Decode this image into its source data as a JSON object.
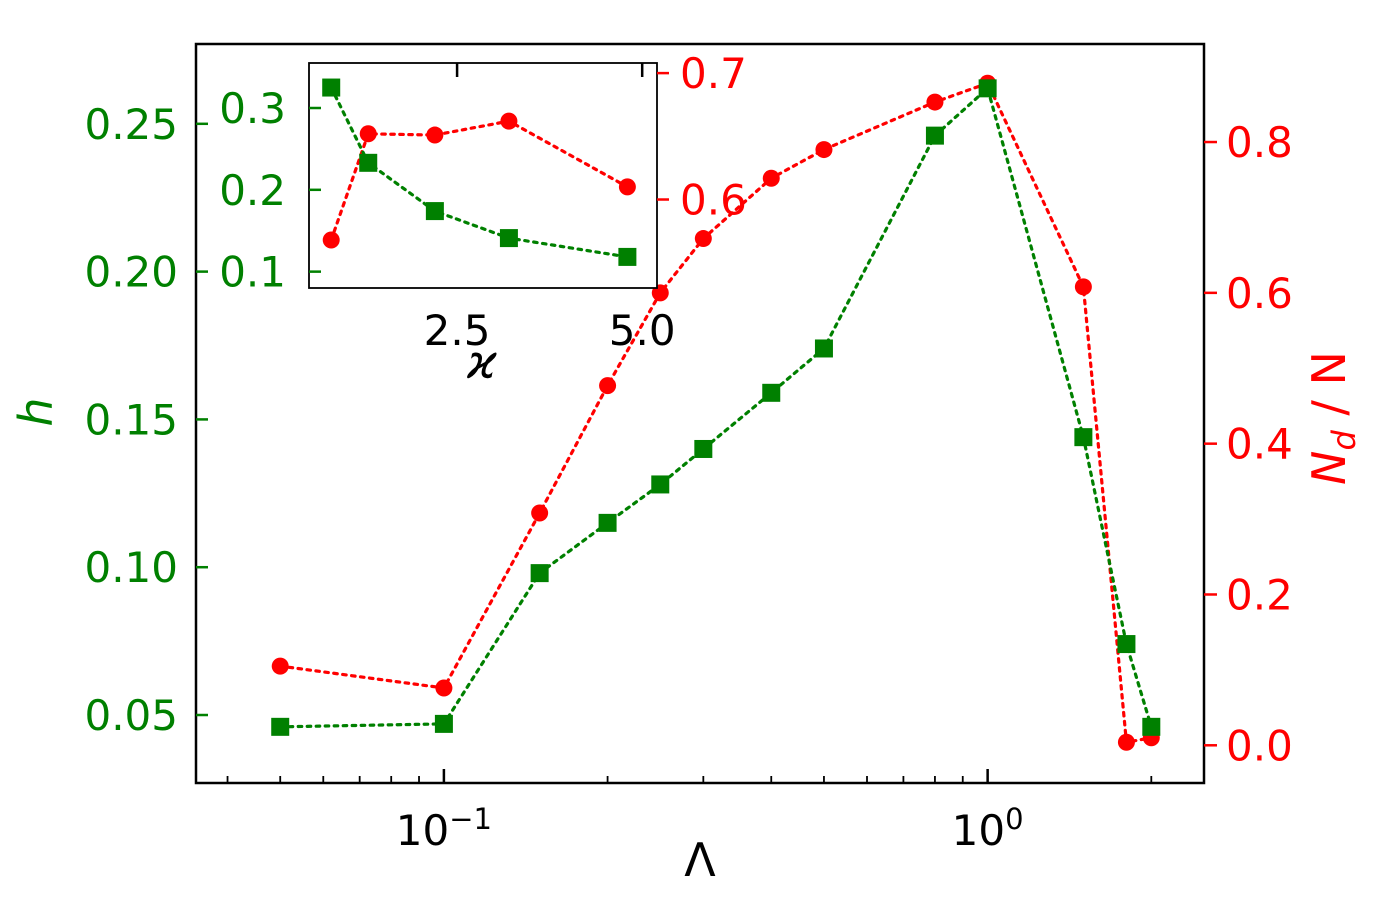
{
  "chart_data": [
    {
      "type": "scatter",
      "title": "",
      "xlabel": "Λ",
      "x_scale": "log",
      "xlim": [
        0.035,
        2.5
      ],
      "x_ticks": [
        {
          "value": 0.1,
          "base": "10",
          "exp": "−1"
        },
        {
          "value": 1,
          "base": "10",
          "exp": "0"
        }
      ],
      "y_left": {
        "label": "h",
        "color": "#008000",
        "lim": [
          0.027,
          0.277
        ],
        "ticks": [
          0.05,
          0.1,
          0.15,
          0.2,
          0.25
        ],
        "tick_labels": [
          "0.05",
          "0.10",
          "0.15",
          "0.20",
          "0.25"
        ]
      },
      "y_right": {
        "label_main": "N",
        "label_sub": "d",
        "label_rest": " / N",
        "color": "#ff0000",
        "lim": [
          -0.05,
          0.93
        ],
        "ticks": [
          0.0,
          0.2,
          0.4,
          0.6,
          0.8
        ],
        "tick_labels": [
          "0.0",
          "0.2",
          "0.4",
          "0.6",
          "0.8"
        ]
      },
      "series": [
        {
          "axis": "left",
          "marker": "square",
          "line": "dotted",
          "color": "#008000",
          "x": [
            0.05,
            0.1,
            0.15,
            0.2,
            0.25,
            0.3,
            0.4,
            0.5,
            0.8,
            1.0,
            1.5,
            1.8,
            2.0
          ],
          "y": [
            0.046,
            0.047,
            0.098,
            0.115,
            0.128,
            0.14,
            0.159,
            0.174,
            0.246,
            0.262,
            0.144,
            0.074,
            0.046
          ]
        },
        {
          "axis": "right",
          "marker": "circle",
          "line": "dotted",
          "color": "#ff0000",
          "x": [
            0.05,
            0.1,
            0.15,
            0.2,
            0.25,
            0.3,
            0.4,
            0.5,
            0.8,
            1.0,
            1.5,
            1.8,
            2.0
          ],
          "y": [
            0.105,
            0.076,
            0.308,
            0.477,
            0.6,
            0.672,
            0.752,
            0.79,
            0.853,
            0.878,
            0.608,
            0.004,
            0.01
          ]
        }
      ]
    },
    {
      "type": "scatter",
      "title": "",
      "xlabel": "ϰ",
      "xlim": [
        0.5,
        5.2
      ],
      "x_ticks": [
        2.5,
        5.0
      ],
      "x_tick_labels": [
        "2.5",
        "5.0"
      ],
      "y_left": {
        "color": "#008000",
        "lim": [
          0.08,
          0.355
        ],
        "ticks": [
          0.1,
          0.2,
          0.3
        ],
        "tick_labels": [
          "0.1",
          "0.2",
          "0.3"
        ]
      },
      "y_right": {
        "color": "#ff0000",
        "lim": [
          0.53,
          0.708
        ],
        "ticks": [
          0.6,
          0.7
        ],
        "tick_labels": [
          "0.6",
          "0.7"
        ]
      },
      "series": [
        {
          "axis": "left",
          "marker": "square",
          "line": "dotted",
          "color": "#008000",
          "x": [
            0.8,
            1.3,
            2.2,
            3.2,
            4.8
          ],
          "y": [
            0.325,
            0.233,
            0.174,
            0.141,
            0.118
          ]
        },
        {
          "axis": "right",
          "marker": "circle",
          "line": "dotted",
          "color": "#ff0000",
          "x": [
            0.8,
            1.3,
            2.2,
            3.2,
            4.8
          ],
          "y": [
            0.568,
            0.652,
            0.651,
            0.662,
            0.61
          ]
        }
      ]
    }
  ]
}
